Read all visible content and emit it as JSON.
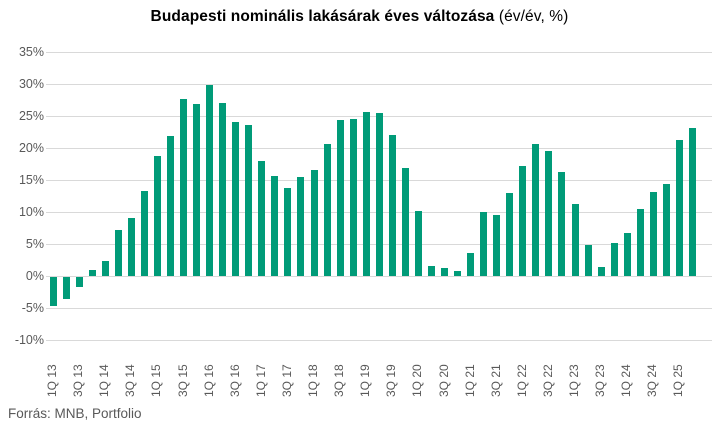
{
  "title": {
    "main": "Budapesti nominális lakásárak éves változása",
    "suffix": " (év/év, %)"
  },
  "footer": {
    "source": "Forrás: MNB, Portfolio"
  },
  "colors": {
    "bar": "#009b78",
    "gridline": "#d9d9d9",
    "axis_text": "#595959",
    "title_text": "#000000",
    "background": "#ffffff"
  },
  "chart_data": {
    "type": "bar",
    "title": "Budapesti nominális lakásárak éves változása (év/év, %)",
    "xlabel": "",
    "ylabel": "",
    "unit": "%",
    "ylim": [
      -10,
      35
    ],
    "grid": "horizontal",
    "legend": "none",
    "y_ticks": [
      "35%",
      "30%",
      "25%",
      "20%",
      "15%",
      "10%",
      "5%",
      "0%",
      "-5%",
      "-10%"
    ],
    "x_tick_labels": [
      "1Q 13",
      "3Q 13",
      "1Q 14",
      "3Q 14",
      "1Q 15",
      "3Q 15",
      "1Q 16",
      "3Q 16",
      "1Q 17",
      "3Q 17",
      "1Q 18",
      "3Q 18",
      "1Q 19",
      "3Q 19",
      "1Q 20",
      "3Q 20",
      "1Q 21",
      "3Q 21",
      "1Q 22",
      "3Q 22",
      "1Q 23",
      "3Q 23",
      "1Q 24",
      "3Q 24",
      "1Q 25"
    ],
    "x_tick_interval": 2,
    "first_quarter": "1Q 13",
    "last_quarter": "2Q 25",
    "values": [
      -4.6,
      -3.4,
      -1.6,
      1.0,
      2.4,
      7.2,
      9.1,
      13.3,
      18.8,
      21.9,
      27.6,
      26.9,
      29.9,
      27.0,
      24.0,
      23.6,
      17.9,
      15.6,
      13.8,
      15.4,
      16.5,
      20.6,
      24.4,
      24.6,
      25.6,
      25.5,
      22.1,
      16.9,
      10.2,
      1.5,
      1.3,
      0.8,
      3.6,
      10.0,
      9.5,
      13.0,
      17.2,
      20.7,
      19.6,
      16.2,
      11.2,
      4.9,
      1.4,
      5.2,
      6.7,
      10.4,
      13.2,
      14.4,
      21.3,
      23.2
    ]
  }
}
